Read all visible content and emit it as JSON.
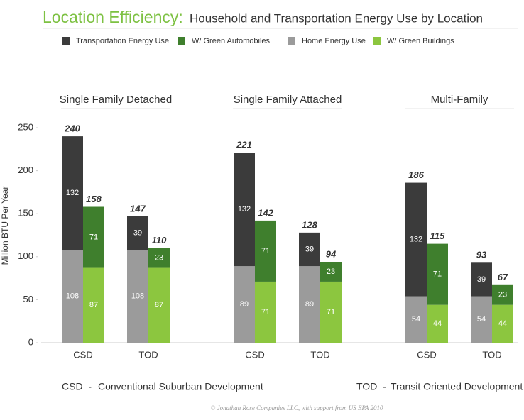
{
  "chart_data": {
    "type": "bar",
    "title": "Location Efficiency:",
    "subtitle": "Household and Transportation Energy Use by Location",
    "ylabel": "Million BTU Per Year",
    "groups": [
      "Single Family Detached",
      "Single Family Attached",
      "Multi-Family"
    ],
    "categories": [
      "CSD",
      "TOD",
      "CSD",
      "TOD",
      "CSD",
      "TOD"
    ],
    "series": [
      {
        "name": "Transportation Energy Use",
        "color": "#3b3b3b",
        "stack": 0,
        "values": [
          132,
          39,
          132,
          39,
          132,
          39
        ]
      },
      {
        "name": "W/ Green Automobiles",
        "color": "#3f7f2d",
        "stack": 1,
        "values": [
          71,
          23,
          71,
          23,
          71,
          23
        ]
      },
      {
        "name": "Home Energy Use",
        "color": "#9b9b9b",
        "stack": 0,
        "values": [
          108,
          108,
          89,
          89,
          54,
          54
        ]
      },
      {
        "name": "W/ Green Buildings",
        "color": "#8cc63f",
        "stack": 1,
        "values": [
          87,
          87,
          71,
          71,
          44,
          44
        ]
      }
    ],
    "totals": [
      [
        240,
        147,
        221,
        128,
        186,
        93
      ],
      [
        158,
        110,
        142,
        94,
        115,
        67
      ]
    ],
    "ylim": [
      0,
      250
    ],
    "yticks": [
      0,
      50,
      100,
      150,
      200,
      250
    ],
    "grid": false,
    "notes": [
      {
        "abbr": "CSD  -",
        "text": "Conventional Suburban Development"
      },
      {
        "abbr": "TOD  -",
        "text": "Transit Oriented Development"
      }
    ],
    "credit": "© Jonathan Rose Companies LLC, with support from US EPA 2010"
  }
}
